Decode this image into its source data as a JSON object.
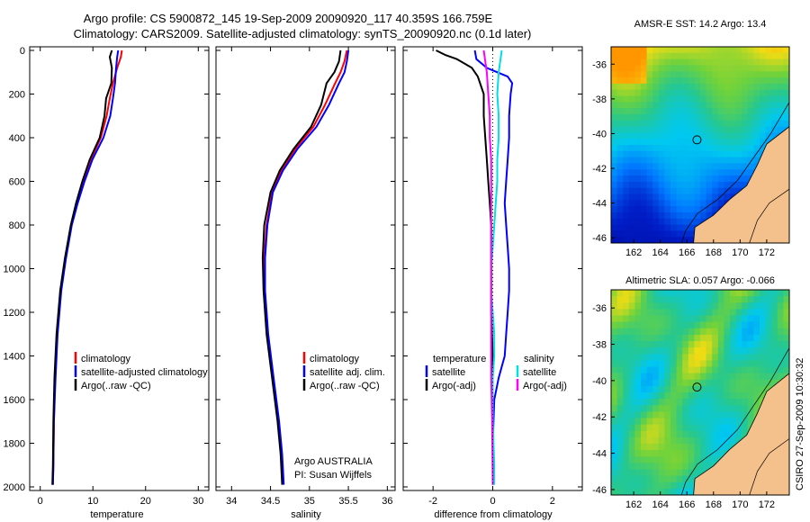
{
  "header": {
    "line1": "Argo profile: CS 5900872_145 19-Sep-2009 20090920_117 40.359S 166.759E",
    "line2": "Climatology: CARS2009. Satellite-adjusted climatology: synTS_20090920.nc (0.1d later)"
  },
  "footer_stamp": "CSIRO 27-Sep-2009 10:30:32",
  "colors": {
    "climatology": "#ff0000",
    "satellite": "#0000ff",
    "argo": "#000000",
    "sat_salinity": "#00e0e0",
    "argo_salinity": "#ff00ff",
    "land": "#f4c08c"
  },
  "chart_data": [
    {
      "type": "line",
      "xlabel": "temperature",
      "ylabel": "",
      "xlim": [
        -2,
        32
      ],
      "ylim": [
        2000,
        0
      ],
      "x_ticks": [
        "0",
        "10",
        "20",
        "30"
      ],
      "y_ticks": [
        "0",
        "200",
        "400",
        "600",
        "800",
        "1000",
        "1200",
        "1400",
        "1600",
        "1800",
        "2000"
      ],
      "legend": [
        "climatology",
        "satellite-adjusted climatology",
        "Argo(..raw -QC)"
      ],
      "series": [
        {
          "name": "climatology",
          "color": "#ff0000",
          "x": [
            15.5,
            15.3,
            14.6,
            13.8,
            13.2,
            12.6,
            11.5,
            9.6,
            8.2,
            6.9,
            5.9,
            4.8,
            3.9,
            3.2,
            2.8,
            2.6,
            2.5,
            2.4
          ],
          "y": [
            0,
            30,
            80,
            150,
            220,
            300,
            400,
            500,
            600,
            700,
            800,
            950,
            1100,
            1300,
            1500,
            1700,
            1900,
            1990
          ]
        },
        {
          "name": "satellite-adjusted climatology",
          "color": "#0000ff",
          "x": [
            14.8,
            14.6,
            14.4,
            14.2,
            13.8,
            13.3,
            12.0,
            9.9,
            8.4,
            7.1,
            6.0,
            4.9,
            4.0,
            3.3,
            2.9,
            2.6,
            2.5,
            2.4
          ],
          "y": [
            0,
            30,
            80,
            150,
            220,
            300,
            400,
            500,
            600,
            700,
            800,
            950,
            1100,
            1300,
            1500,
            1700,
            1900,
            1990
          ]
        },
        {
          "name": "Argo(..raw -QC)",
          "color": "#000000",
          "x": [
            13.6,
            13.2,
            13.6,
            13.5,
            12.5,
            12.2,
            11.3,
            9.4,
            8.0,
            6.8,
            5.8,
            4.7,
            3.8,
            3.1,
            2.7,
            2.5,
            2.4,
            2.3
          ],
          "y": [
            0,
            30,
            80,
            150,
            220,
            300,
            400,
            500,
            600,
            700,
            800,
            950,
            1100,
            1300,
            1500,
            1700,
            1900,
            1990
          ]
        }
      ]
    },
    {
      "type": "line",
      "xlabel": "salinity",
      "ylabel": "",
      "xlim": [
        33.8,
        36.1
      ],
      "ylim": [
        2000,
        0
      ],
      "x_ticks": [
        "34",
        "34.5",
        "35",
        "35.5",
        "36"
      ],
      "legend": [
        "climatology",
        "satellite adj. clim.",
        "Argo(..raw -QC)"
      ],
      "annotations": [
        "Argo AUSTRALIA",
        "PI: Susan Wijffels"
      ],
      "series": [
        {
          "name": "climatology",
          "color": "#ff0000",
          "x": [
            35.48,
            35.45,
            35.4,
            35.33,
            35.2,
            35.05,
            34.82,
            34.64,
            34.52,
            34.45,
            34.42,
            34.42,
            34.46,
            34.53,
            34.6,
            34.64,
            34.66
          ],
          "y": [
            0,
            50,
            100,
            150,
            250,
            350,
            450,
            550,
            650,
            800,
            950,
            1100,
            1300,
            1500,
            1700,
            1850,
            1990
          ]
        },
        {
          "name": "satellite adj. clim.",
          "color": "#0000ff",
          "x": [
            35.5,
            35.48,
            35.45,
            35.38,
            35.25,
            35.09,
            34.85,
            34.66,
            34.53,
            34.46,
            34.43,
            34.43,
            34.47,
            34.54,
            34.61,
            34.65,
            34.67
          ],
          "y": [
            0,
            50,
            100,
            150,
            250,
            350,
            450,
            550,
            650,
            800,
            950,
            1100,
            1300,
            1500,
            1700,
            1850,
            1990
          ]
        },
        {
          "name": "Argo(..raw -QC)",
          "color": "#000000",
          "x": [
            35.4,
            35.38,
            35.32,
            35.22,
            35.15,
            35.02,
            34.8,
            34.62,
            34.5,
            34.42,
            34.4,
            34.41,
            34.45,
            34.52,
            34.59,
            34.63,
            34.65
          ],
          "y": [
            0,
            50,
            100,
            150,
            250,
            350,
            450,
            550,
            650,
            800,
            950,
            1100,
            1300,
            1500,
            1700,
            1850,
            1990
          ]
        }
      ]
    },
    {
      "type": "line",
      "xlabel": "difference from climatology",
      "ylabel": "",
      "xlim": [
        -3,
        3
      ],
      "ylim": [
        2000,
        0
      ],
      "x_ticks": [
        "-2",
        "0",
        "2"
      ],
      "legend_groups": [
        {
          "title": "temperature",
          "items": [
            "satellite",
            "Argo(-adj)"
          ]
        },
        {
          "title": "salinity",
          "items": [
            "satellite",
            "Argo(-adj)"
          ]
        }
      ],
      "series": [
        {
          "name": "temperature satellite",
          "color": "#0000ff",
          "x": [
            -0.6,
            -0.55,
            -0.2,
            0.5,
            0.65,
            0.6,
            0.55,
            0.55,
            0.5,
            0.45,
            0.4,
            0.45,
            0.5,
            0.55,
            0.55,
            0.5,
            0.45,
            0.4,
            0.2,
            0.05,
            0.0,
            0.0
          ],
          "y": [
            0,
            40,
            80,
            120,
            150,
            200,
            300,
            400,
            500,
            600,
            700,
            800,
            900,
            1000,
            1100,
            1200,
            1300,
            1400,
            1500,
            1600,
            1800,
            1990
          ]
        },
        {
          "name": "temperature Argo(-adj)",
          "color": "#000000",
          "x": [
            -1.9,
            -1.6,
            -1.2,
            -0.7,
            -0.5,
            -0.3,
            -0.3,
            -0.25,
            -0.2,
            -0.15,
            -0.1,
            -0.05,
            -0.05,
            -0.05,
            0.0,
            0.0,
            0.0,
            0.0
          ],
          "y": [
            0,
            20,
            40,
            80,
            120,
            200,
            300,
            400,
            500,
            600,
            700,
            800,
            1000,
            1200,
            1400,
            1600,
            1800,
            1990
          ]
        },
        {
          "name": "salinity satellite",
          "color": "#00e0e0",
          "x": [
            0.3,
            0.25,
            0.2,
            0.15,
            0.2,
            0.2,
            0.15,
            0.15,
            0.1,
            0.05,
            0.0,
            -0.05,
            -0.05,
            0.0,
            0.05,
            0.05,
            0.0,
            0.0,
            0.05,
            0.05
          ],
          "y": [
            0,
            50,
            100,
            200,
            300,
            400,
            500,
            600,
            700,
            800,
            900,
            1000,
            1100,
            1200,
            1300,
            1400,
            1500,
            1700,
            1900,
            1990
          ]
        },
        {
          "name": "salinity Argo(-adj)",
          "color": "#ff00ff",
          "x": [
            -0.3,
            -0.25,
            -0.2,
            -0.15,
            -0.1,
            -0.1,
            -0.05,
            -0.05,
            -0.05,
            -0.05,
            -0.05,
            -0.05,
            -0.02,
            0.0
          ],
          "y": [
            0,
            50,
            100,
            200,
            300,
            400,
            500,
            700,
            900,
            1100,
            1300,
            1500,
            1700,
            1990
          ]
        }
      ]
    },
    {
      "type": "heatmap",
      "title": "AMSR-E SST: 14.2  Argo: 13.4",
      "x_ticks": [
        "162",
        "164",
        "166",
        "168",
        "170",
        "172"
      ],
      "y_ticks": [
        "-36",
        "-38",
        "-40",
        "-42",
        "-44",
        "-46"
      ],
      "xlim": [
        160.3,
        173.7
      ],
      "ylim": [
        -46.3,
        -35.0
      ],
      "marker": {
        "lon": 166.759,
        "lat": -40.359
      }
    },
    {
      "type": "heatmap",
      "title": "Altimetric SLA: 0.057  Argo: -0.066",
      "x_ticks": [
        "162",
        "164",
        "166",
        "168",
        "170",
        "172"
      ],
      "y_ticks": [
        "-36",
        "-38",
        "-40",
        "-42",
        "-44",
        "-46"
      ],
      "xlim": [
        160.3,
        173.7
      ],
      "ylim": [
        -46.3,
        -35.0
      ],
      "marker": {
        "lon": 166.759,
        "lat": -40.359
      }
    }
  ]
}
